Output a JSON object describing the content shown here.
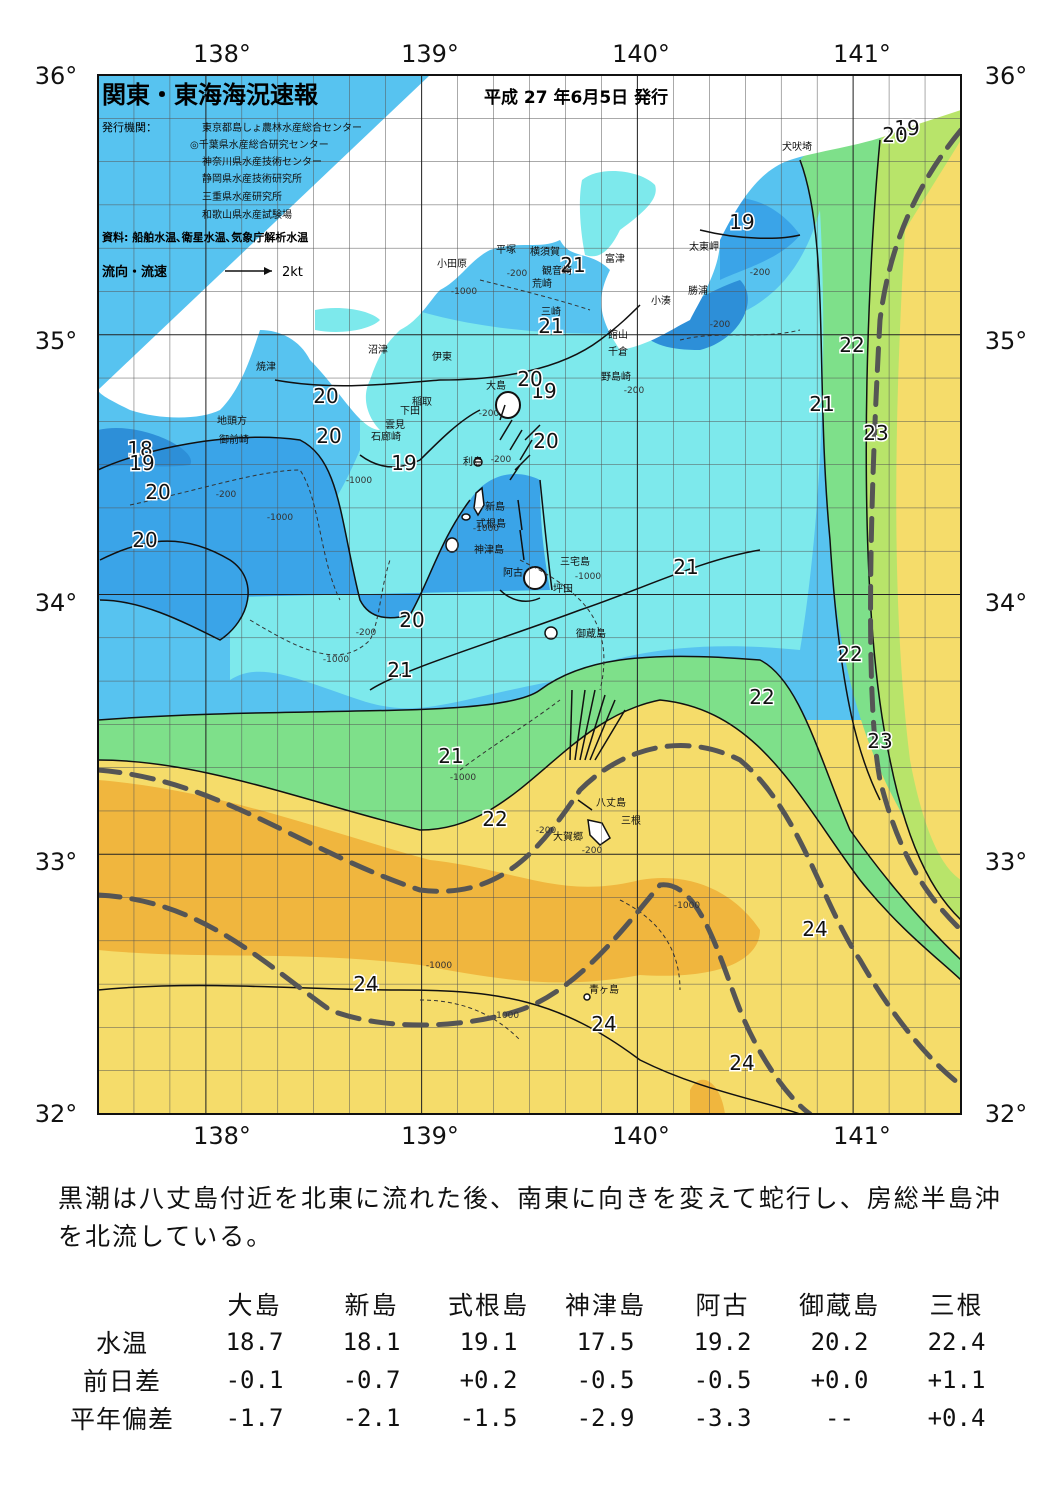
{
  "header": {
    "title": "関東・東海海況速報",
    "date": "平成 27 年6月5日 発行"
  },
  "publishers": {
    "label": "発行機関：",
    "items": [
      "東京都島しょ農林水産総合センター",
      "◎千葉県水産総合研究センター",
      "神奈川県水産技術センター",
      "静岡県水産技術研究所",
      "三重県水産研究所",
      "和歌山県水産試験場"
    ]
  },
  "source_line": "資料: 船舶水温､衛星水温､気象庁解析水温",
  "legend": {
    "label": "流向・流速",
    "scale": "2kt"
  },
  "axes": {
    "lon_labels": [
      "138°",
      "139°",
      "140°",
      "141°"
    ],
    "lat_labels": [
      "36°",
      "35°",
      "34°",
      "33°",
      "32°"
    ]
  },
  "isotherm_labels": [
    "18",
    "19",
    "19",
    "19",
    "19",
    "19",
    "20",
    "20",
    "20",
    "20",
    "20",
    "20",
    "20",
    "20",
    "21",
    "21",
    "21",
    "21",
    "21",
    "21",
    "22",
    "22",
    "22",
    "22",
    "23",
    "23",
    "24",
    "24",
    "24",
    "24"
  ],
  "depth_labels": [
    "-200",
    "-200",
    "-200",
    "-200",
    "-200",
    "-200",
    "-200",
    "-200",
    "-200",
    "-200",
    "-1000",
    "-1000",
    "-1000",
    "-1000",
    "-1000",
    "-1000",
    "-1000",
    "-1000",
    "-1000",
    "-1000"
  ],
  "place_names": [
    "犬吠埼",
    "太東岬",
    "勝浦",
    "小湊",
    "館山",
    "千倉",
    "野島崎",
    "富津",
    "観音崎",
    "荒崎",
    "三崎",
    "横須賀",
    "平塚",
    "小田原",
    "沼津",
    "伊東",
    "焼津",
    "稲取",
    "下田",
    "雲見",
    "石廊崎",
    "地頭方",
    "御前崎",
    "利島",
    "新島",
    "式根島",
    "神津島",
    "阿古",
    "坪田",
    "三宅島",
    "御蔵島",
    "八丈島",
    "三根",
    "大賀郷",
    "青ヶ島",
    "大島"
  ],
  "colors": {
    "land": "#ffffff",
    "sst_18": "#2d8fd8",
    "sst_19": "#3aa4e8",
    "sst_20": "#57c3f0",
    "sst_21": "#7de9ec",
    "sst_22": "#7ee08a",
    "sst_23": "#b8e46a",
    "sst_24": "#f5dc6a",
    "sst_25": "#f0b63e",
    "kuroshio_axis": "#555555"
  },
  "summary": "黒潮は八丈島付近を北東に流れた後、南東に向きを変えて蛇行し、房総半島沖を北流している。",
  "station_table": {
    "columns": [
      "大島",
      "新島",
      "式根島",
      "神津島",
      "阿古",
      "御蔵島",
      "三根"
    ],
    "rows": [
      {
        "label": "水温",
        "values": [
          "18.7",
          "18.1",
          "19.1",
          "17.5",
          "19.2",
          "20.2",
          "22.4"
        ]
      },
      {
        "label": "前日差",
        "values": [
          "-0.1",
          "-0.7",
          "+0.2",
          "-0.5",
          "-0.5",
          "+0.0",
          "+1.1"
        ]
      },
      {
        "label": "平年偏差",
        "values": [
          "-1.7",
          "-2.1",
          "-1.5",
          "-2.9",
          "-3.3",
          "--",
          "+0.4"
        ]
      }
    ]
  }
}
